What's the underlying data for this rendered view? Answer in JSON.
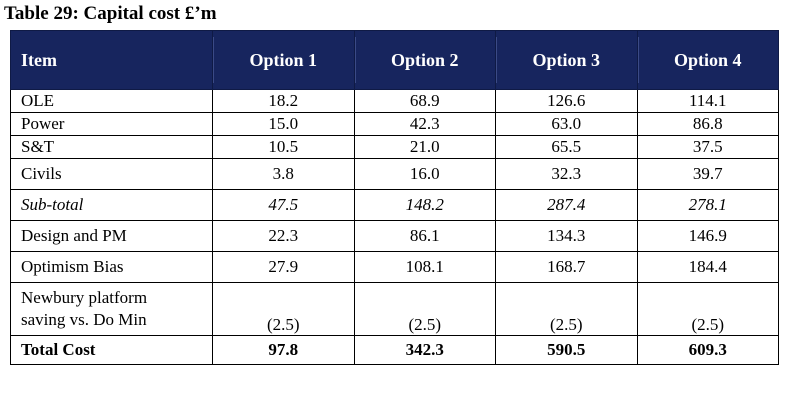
{
  "caption": "Table 29: Capital cost £’m",
  "table": {
    "header": {
      "item": "Item",
      "options": [
        "Option 1",
        "Option 2",
        "Option 3",
        "Option 4"
      ]
    },
    "rows": [
      {
        "item": "OLE",
        "values": [
          "18.2",
          "68.9",
          "126.6",
          "114.1"
        ]
      },
      {
        "item": "Power",
        "values": [
          "15.0",
          "42.3",
          "63.0",
          "86.8"
        ]
      },
      {
        "item": "S&T",
        "values": [
          "10.5",
          "21.0",
          "65.5",
          "37.5"
        ]
      },
      {
        "item": "Civils",
        "values": [
          "3.8",
          "16.0",
          "32.3",
          "39.7"
        ]
      },
      {
        "item": "Sub-total",
        "values": [
          "47.5",
          "148.2",
          "287.4",
          "278.1"
        ]
      },
      {
        "item": "Design and PM",
        "values": [
          "22.3",
          "86.1",
          "134.3",
          "146.9"
        ]
      },
      {
        "item": "Optimism Bias",
        "values": [
          "27.9",
          "108.1",
          "168.7",
          "184.4"
        ]
      },
      {
        "item_line1": "Newbury platform",
        "item_line2": "saving vs. Do Min",
        "values": [
          "(2.5)",
          "(2.5)",
          "(2.5)",
          "(2.5)"
        ]
      },
      {
        "item": "Total Cost",
        "values": [
          "97.8",
          "342.3",
          "590.5",
          "609.3"
        ]
      }
    ]
  },
  "colors": {
    "header_background": "#17255e",
    "header_text": "#ffffff",
    "border": "#000000"
  }
}
